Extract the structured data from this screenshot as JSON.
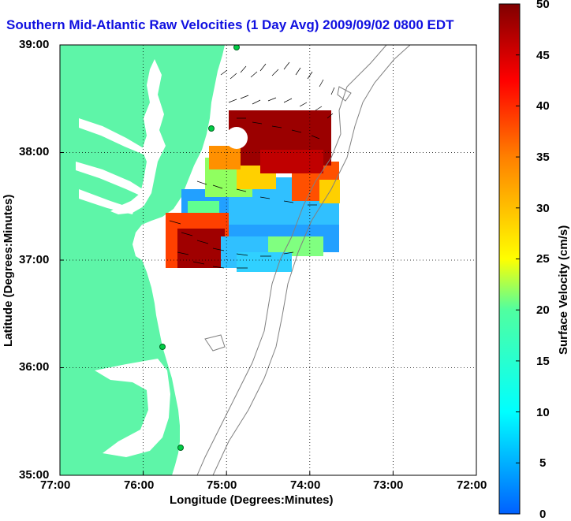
{
  "title": "Southern Mid-Atlantic Raw Velocities (1 Day Avg) 2009/09/02 0800 EDT",
  "map": {
    "xlabel": "Longitude (Degrees:Minutes)",
    "ylabel": "Latitude (Degrees:Minutes)",
    "x_ticks": [
      "77:00",
      "76:00",
      "75:00",
      "74:00",
      "73:00",
      "72:00"
    ],
    "y_ticks": [
      "39:00",
      "38:00",
      "37:00",
      "36:00",
      "35:00"
    ],
    "land_color": "#5ef5a8",
    "grid": "dotted"
  },
  "colorbar": {
    "label": "Surface Velocity (cm/s)",
    "ticks": [
      "50",
      "45",
      "40",
      "35",
      "30",
      "25",
      "20",
      "15",
      "10",
      "5",
      "0"
    ],
    "range": [
      0,
      50
    ],
    "colormap": "jet"
  }
}
